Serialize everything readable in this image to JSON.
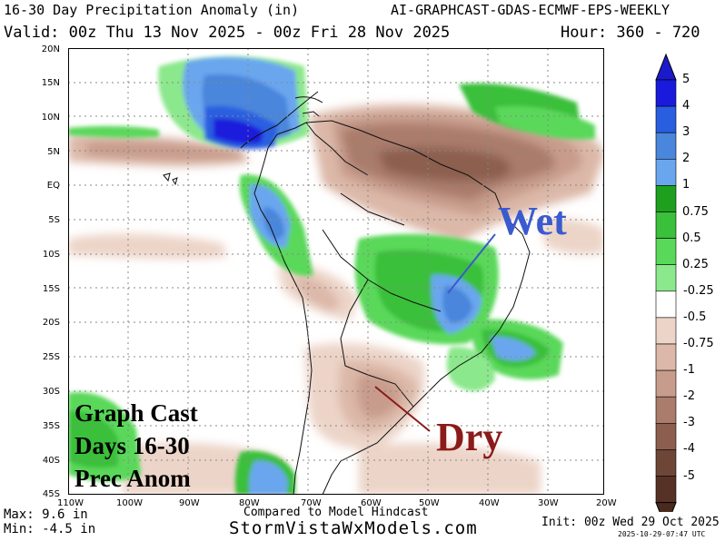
{
  "header": {
    "title": "16-30 Day Precipitation Anomaly (in)",
    "model": "AI-GRAPHCAST-GDAS-ECMWF-EPS-WEEKLY",
    "valid": "Valid: 00z Thu 13 Nov 2025 - 00z Fri 28 Nov 2025",
    "hour": "Hour: 360 - 720"
  },
  "axes": {
    "lat_labels": [
      "20N",
      "15N",
      "10N",
      "5N",
      "EQ",
      "5S",
      "10S",
      "15S",
      "20S",
      "25S",
      "30S",
      "35S",
      "40S",
      "45S"
    ],
    "lon_labels": [
      "110W",
      "100W",
      "90W",
      "80W",
      "70W",
      "60W",
      "50W",
      "40W",
      "30W",
      "20W"
    ]
  },
  "colorbar": {
    "labels": [
      "5",
      "4",
      "3",
      "2",
      "1",
      "0.75",
      "0.5",
      "0.25",
      "-0.25",
      "-0.5",
      "-0.75",
      "-1",
      "-2",
      "-3",
      "-4",
      "-5"
    ],
    "colors": [
      "#1a1adc",
      "#2a5ee0",
      "#4a86dc",
      "#6aa6ee",
      "#1ea01e",
      "#3ac03a",
      "#5ad85a",
      "#8ce88c",
      "#ffffff",
      "#ecd4c8",
      "#dcb8a8",
      "#c89c8c",
      "#aa7c6c",
      "#8c5e50",
      "#6e4638",
      "#563226"
    ]
  },
  "annotations": {
    "wet": "Wet",
    "dry": "Dry",
    "box_lines": [
      "Graph Cast",
      "Days 16-30",
      "Prec Anom"
    ],
    "wet_color": "#3a5ad0",
    "dry_color": "#8b1a1a"
  },
  "footer": {
    "max": "Max: 9.6 in",
    "min": "Min: -4.5 in",
    "compared": "Compared to Model Hindcast",
    "site": "StormVistaWxModels.com",
    "init": "Init: 00z Wed 29 Oct 2025",
    "stamp": "2025-10-29-07:47 UTC"
  }
}
